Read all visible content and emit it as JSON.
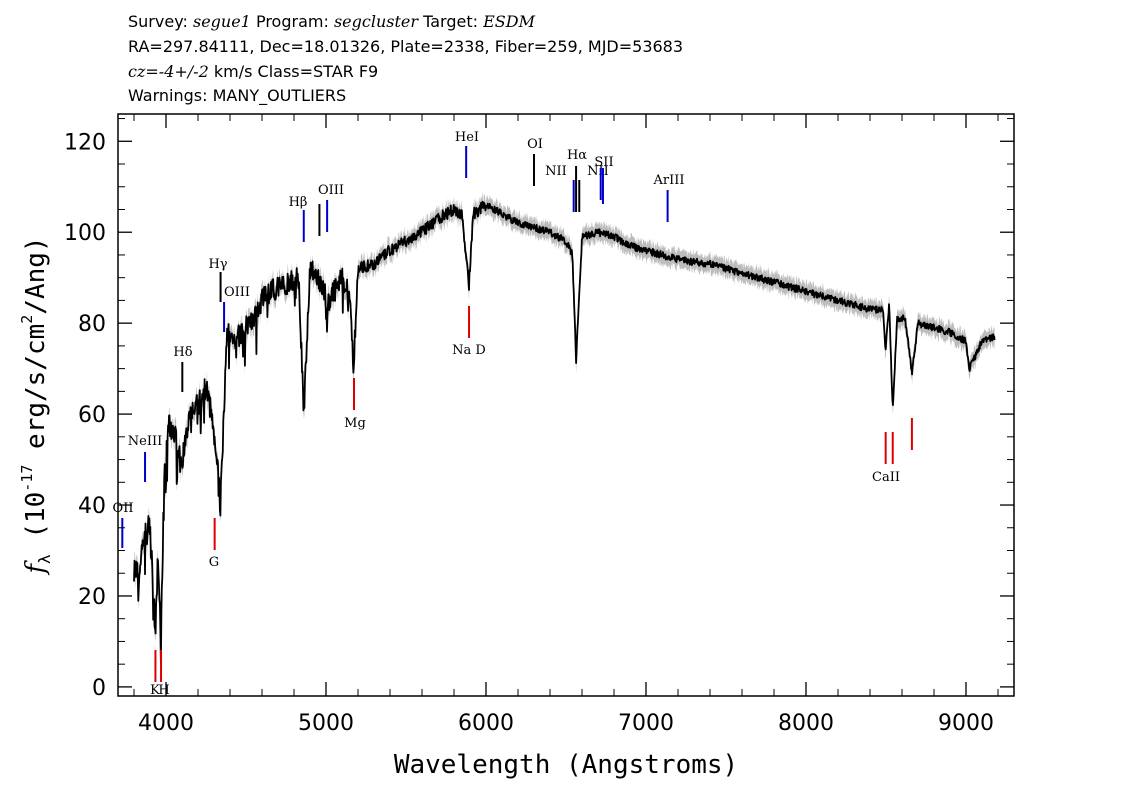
{
  "header": {
    "survey_key": "Survey:",
    "survey": "segue1",
    "program_key": "Program:",
    "program": "segcluster",
    "target_key": "Target:",
    "target": "ESDM",
    "line2": "RA=297.84111, Dec=18.01326, Plate=2338, Fiber=259, MJD=53683",
    "cz": "cz=-4+/-2",
    "cz_rest": " km/s Class=STAR F9",
    "warnings": "Warnings: MANY_OUTLIERS"
  },
  "chart_data": {
    "type": "line",
    "xlabel": "Wavelength (Angstroms)",
    "ylabel": "f_λ (10^-17 erg/s/cm^2/Ang)",
    "xlim": [
      3700,
      9300
    ],
    "ylim": [
      -2,
      126
    ],
    "x_ticks": [
      4000,
      5000,
      6000,
      7000,
      8000,
      9000
    ],
    "y_ticks": [
      0,
      20,
      40,
      60,
      80,
      100,
      120
    ],
    "grid": false,
    "colors": {
      "spectrum": "#000000",
      "error": "#b0b0b0",
      "emission": "#0000cc",
      "absorption": "#dd0000"
    },
    "spectrum": {
      "x": [
        3800,
        3830,
        3860,
        3900,
        3933,
        3950,
        3968,
        3990,
        4020,
        4060,
        4101,
        4150,
        4200,
        4250,
        4300,
        4340,
        4380,
        4420,
        4480,
        4550,
        4620,
        4700,
        4780,
        4830,
        4861,
        4900,
        4960,
        5020,
        5100,
        5150,
        5172,
        5200,
        5300,
        5400,
        5500,
        5600,
        5700,
        5800,
        5850,
        5893,
        5920,
        6000,
        6100,
        6200,
        6300,
        6400,
        6500,
        6540,
        6563,
        6600,
        6700,
        6800,
        6900,
        7000,
        7200,
        7400,
        7600,
        7800,
        8000,
        8200,
        8400,
        8480,
        8498,
        8520,
        8542,
        8570,
        8620,
        8662,
        8700,
        8800,
        8900,
        9000,
        9020,
        9100,
        9180
      ],
      "y": [
        28,
        24,
        33,
        36,
        12,
        30,
        11,
        48,
        58,
        55,
        50,
        60,
        62,
        66,
        58,
        40,
        78,
        76,
        78,
        82,
        86,
        88,
        89,
        90,
        60,
        92,
        89,
        85,
        90,
        86,
        70,
        92,
        93,
        96,
        98,
        100,
        103,
        105,
        104,
        88,
        104,
        106,
        104,
        102,
        101,
        100,
        98,
        95,
        72,
        99,
        100,
        99,
        97,
        96,
        94,
        93,
        91,
        89,
        87,
        85,
        83,
        83,
        74,
        84,
        61,
        81,
        81,
        69,
        80,
        79,
        78,
        76,
        70,
        76,
        77
      ]
    },
    "emission_lines": [
      {
        "label": "OII",
        "wavelength": 3727
      },
      {
        "label": "NeIII",
        "wavelength": 3869
      },
      {
        "label": "Hδ",
        "wavelength": 4102
      },
      {
        "label": "Hγ",
        "wavelength": 4341
      },
      {
        "label": "OIII",
        "wavelength": 4363
      },
      {
        "label": "Hβ",
        "wavelength": 4861
      },
      {
        "label": "OIII",
        "wavelength": 4959
      },
      {
        "label": "OIII",
        "wavelength": 5007
      },
      {
        "label": "HeI",
        "wavelength": 5876
      },
      {
        "label": "OI",
        "wavelength": 6300
      },
      {
        "label": "NII",
        "wavelength": 6548
      },
      {
        "label": "Hα",
        "wavelength": 6563
      },
      {
        "label": "NII",
        "wavelength": 6583
      },
      {
        "label": "SII",
        "wavelength": 6717
      },
      {
        "label": "SII",
        "wavelength": 6731
      },
      {
        "label": "ArIII",
        "wavelength": 7135
      }
    ],
    "absorption_lines": [
      {
        "label": "K",
        "wavelength": 3934
      },
      {
        "label": "H",
        "wavelength": 3969
      },
      {
        "label": "G",
        "wavelength": 4304
      },
      {
        "label": "Mg",
        "wavelength": 5175
      },
      {
        "label": "Na D",
        "wavelength": 5894
      },
      {
        "label": "CaII",
        "wavelength": 8498
      },
      {
        "label": "CaII",
        "wavelength": 8542
      },
      {
        "label": "CaII",
        "wavelength": 8662
      }
    ]
  }
}
